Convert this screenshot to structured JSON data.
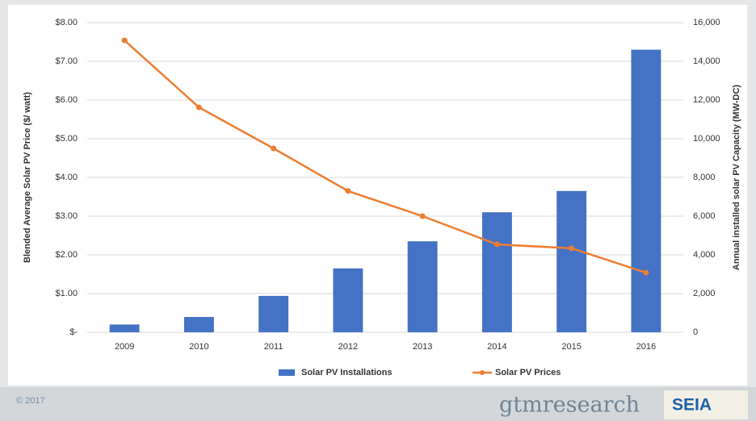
{
  "chart_data": {
    "type": "combo",
    "y_label": "Blended Average Solar PV Price ($/ watt)",
    "y2_label": "Annual installed solar PV Capacity (MW-DC)",
    "categories": [
      "2009",
      "2010",
      "2011",
      "2012",
      "2013",
      "2014",
      "2015",
      "2016"
    ],
    "series": [
      {
        "name": "Solar PV Installations",
        "type": "bar",
        "axis": "y2",
        "color": "#4472c4",
        "values": [
          400,
          790,
          1880,
          3300,
          4700,
          6200,
          7300,
          14600
        ]
      },
      {
        "name": "Solar PV Prices",
        "type": "line",
        "axis": "y",
        "color": "#ed7d31",
        "values": [
          7.54,
          5.81,
          4.75,
          3.65,
          3.0,
          2.27,
          2.17,
          1.54
        ]
      }
    ],
    "ylim": [
      0,
      8
    ],
    "yticks": [
      {
        "value": 0,
        "label": "$-"
      },
      {
        "value": 1,
        "label": "$1.00"
      },
      {
        "value": 2,
        "label": "$2.00"
      },
      {
        "value": 3,
        "label": "$3.00"
      },
      {
        "value": 4,
        "label": "$4.00"
      },
      {
        "value": 5,
        "label": "$5.00"
      },
      {
        "value": 6,
        "label": "$6.00"
      },
      {
        "value": 7,
        "label": "$7.00"
      },
      {
        "value": 8,
        "label": "$8.00"
      }
    ],
    "y2lim": [
      0,
      16000
    ],
    "y2ticks": [
      0,
      {
        "value": 2000,
        "label": "2,000"
      },
      {
        "value": 4000,
        "label": "4,000"
      },
      {
        "value": 6000,
        "label": "6,000"
      },
      {
        "value": 8000,
        "label": "8,000"
      },
      {
        "value": 10000,
        "label": "10,000"
      },
      {
        "value": 12000,
        "label": "12,000"
      },
      {
        "value": 14000,
        "label": "14,000"
      },
      {
        "value": 16000,
        "label": "16,000"
      }
    ],
    "grid": true,
    "legend": "bottom"
  },
  "footer": {
    "copyright": "© 2017",
    "logos": [
      "gtmresearch",
      "SEIA"
    ]
  }
}
